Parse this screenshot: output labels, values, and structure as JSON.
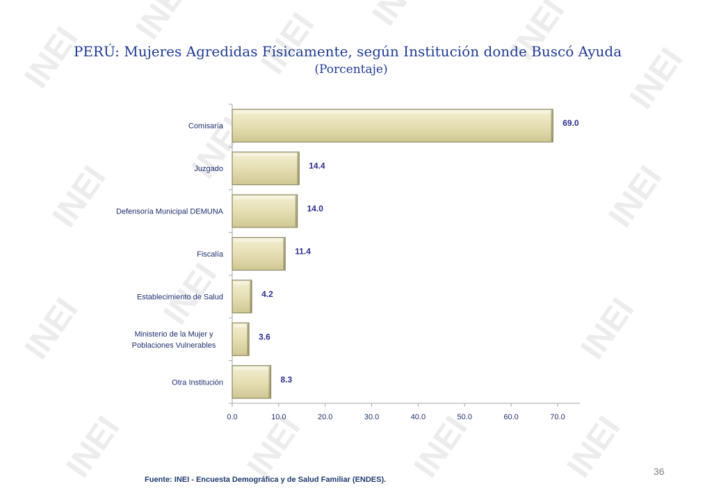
{
  "title": "PERÚ: Mujeres Agredidas Físicamente, según Institución donde Buscó Ayuda",
  "subtitle": "(Porcentaje)",
  "source": "Fuente: INEI - Encuesta Demográfica y de Salud Familiar (ENDES).",
  "page_number": "36",
  "watermark_text": "INEI",
  "colors": {
    "title": "#1f3a93",
    "bar_fill": "#e6dfb4",
    "bar_edge": "#8c8760",
    "value_label": "#2e2e8f",
    "category_label": "#1f2f6e",
    "axis": "#a6a6a6"
  },
  "chart_data": {
    "type": "bar",
    "orientation": "horizontal",
    "categories": [
      [
        "Comisaría"
      ],
      [
        "Juzgado"
      ],
      [
        "Defensoría Municipal DEMUNA"
      ],
      [
        "Fiscalía"
      ],
      [
        "Establecimiento de Salud"
      ],
      [
        "Ministerio de la Mujer y",
        "Poblaciones Vulnerables"
      ],
      [
        "Otra Institución"
      ]
    ],
    "values": [
      69.0,
      14.4,
      14.0,
      11.4,
      4.2,
      3.6,
      8.3
    ],
    "value_labels": [
      "69.0",
      "14.4",
      "14.0",
      "11.4",
      "4.2",
      "3.6",
      "8.3"
    ],
    "xticks": [
      "0.0",
      "10.0",
      "20.0",
      "30.0",
      "40.0",
      "50.0",
      "60.0",
      "70.0"
    ],
    "xlim": [
      0,
      75
    ],
    "grid": false,
    "legend": "none"
  }
}
